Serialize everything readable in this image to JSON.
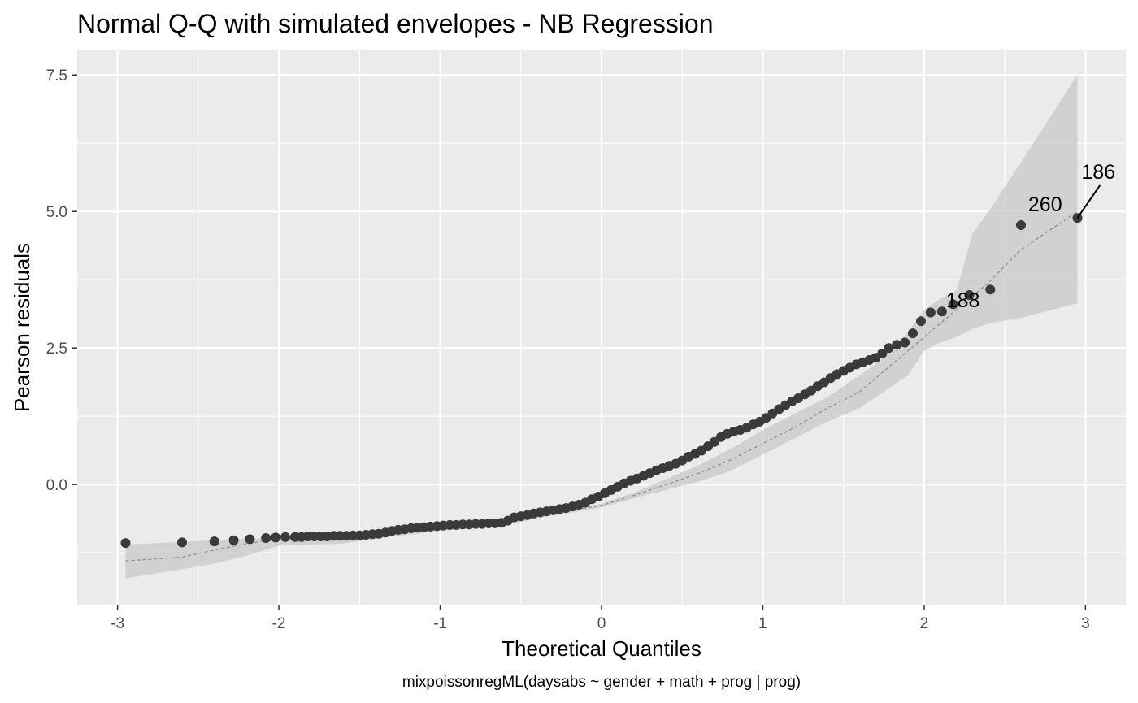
{
  "chart_data": {
    "type": "scatter",
    "title": "Normal Q-Q with simulated envelopes - NB Regression",
    "xlabel": "Theoretical Quantiles",
    "ylabel": "Pearson residuals",
    "caption": "mixpoissonregML(daysabs ~ gender + math + prog | prog)",
    "xlim": [
      -3.25,
      3.25
    ],
    "ylim": [
      -2.2,
      7.95
    ],
    "xticks": [
      -3,
      -2,
      -1,
      0,
      1,
      2,
      3
    ],
    "xtick_labels": [
      "-3",
      "-2",
      "-1",
      "0",
      "1",
      "2",
      "3"
    ],
    "yticks": [
      0.0,
      2.5,
      5.0,
      7.5
    ],
    "ytick_labels": [
      "0.0",
      "2.5",
      "5.0",
      "7.5"
    ],
    "grid": true,
    "colors": {
      "panel": "#ebebeb",
      "grid": "#ffffff",
      "points": "#3a3a3a",
      "envelope": "#c8c8c8",
      "median_line": "#8c8c8c"
    },
    "envelope": {
      "x": [
        -2.95,
        -2.6,
        -2.4,
        -2.2,
        -2.0,
        -1.6,
        -1.3,
        -1.0,
        -0.6,
        -0.4,
        -0.2,
        0.0,
        0.2,
        0.4,
        0.6,
        0.8,
        1.0,
        1.2,
        1.4,
        1.6,
        1.7,
        1.8,
        1.9,
        2.0,
        2.1,
        2.2,
        2.3,
        2.4,
        2.6,
        2.95
      ],
      "lower": [
        -1.72,
        -1.55,
        -1.45,
        -1.3,
        -1.12,
        -1.08,
        -0.95,
        -0.85,
        -0.75,
        -0.62,
        -0.52,
        -0.42,
        -0.25,
        -0.1,
        0.05,
        0.25,
        0.55,
        0.85,
        1.15,
        1.4,
        1.6,
        1.8,
        2.0,
        2.45,
        2.6,
        2.7,
        2.85,
        2.95,
        3.05,
        3.32
      ],
      "upper": [
        -1.1,
        -1.05,
        -1.02,
        -0.99,
        -0.97,
        -0.92,
        -0.85,
        -0.75,
        -0.65,
        -0.55,
        -0.45,
        -0.35,
        -0.15,
        0.1,
        0.35,
        0.65,
        1.0,
        1.3,
        1.6,
        2.0,
        2.2,
        2.45,
        2.8,
        3.2,
        3.4,
        3.55,
        4.6,
        5.0,
        5.9,
        7.5
      ]
    },
    "median_line": {
      "x": [
        -2.95,
        -2.6,
        -2.4,
        -2.2,
        -2.0,
        -1.6,
        -1.3,
        -1.0,
        -0.6,
        -0.4,
        -0.2,
        0.0,
        0.2,
        0.4,
        0.6,
        0.8,
        1.0,
        1.2,
        1.4,
        1.6,
        1.8,
        2.0,
        2.2,
        2.4,
        2.6,
        2.95
      ],
      "y": [
        -1.4,
        -1.33,
        -1.2,
        -1.08,
        -1.0,
        -0.95,
        -0.88,
        -0.78,
        -0.68,
        -0.58,
        -0.48,
        -0.38,
        -0.2,
        0.0,
        0.2,
        0.45,
        0.75,
        1.05,
        1.4,
        1.7,
        2.2,
        2.7,
        3.2,
        3.7,
        4.3,
        5.0
      ]
    },
    "points": {
      "x": [
        -2.95,
        -2.6,
        -2.4,
        -2.28,
        -2.18,
        -2.08,
        -2.02,
        -1.96,
        -1.9,
        -1.86,
        -1.82,
        -1.78,
        -1.74,
        -1.7,
        -1.66,
        -1.62,
        -1.58,
        -1.54,
        -1.5,
        -1.46,
        -1.42,
        -1.38,
        -1.34,
        -1.3,
        -1.26,
        -1.22,
        -1.18,
        -1.14,
        -1.1,
        -1.06,
        -1.02,
        -0.98,
        -0.94,
        -0.9,
        -0.86,
        -0.82,
        -0.78,
        -0.74,
        -0.7,
        -0.66,
        -0.62,
        -0.58,
        -0.54,
        -0.5,
        -0.46,
        -0.42,
        -0.38,
        -0.34,
        -0.3,
        -0.26,
        -0.22,
        -0.18,
        -0.14,
        -0.1,
        -0.06,
        -0.02,
        0.02,
        0.06,
        0.1,
        0.14,
        0.18,
        0.22,
        0.26,
        0.3,
        0.34,
        0.38,
        0.42,
        0.46,
        0.5,
        0.54,
        0.58,
        0.62,
        0.66,
        0.7,
        0.74,
        0.78,
        0.82,
        0.86,
        0.9,
        0.94,
        0.98,
        1.02,
        1.06,
        1.1,
        1.14,
        1.18,
        1.22,
        1.26,
        1.3,
        1.34,
        1.38,
        1.42,
        1.46,
        1.5,
        1.54,
        1.58,
        1.62,
        1.66,
        1.7,
        1.74,
        1.78,
        1.83,
        1.88,
        1.93,
        1.98,
        2.04,
        2.11,
        2.18,
        2.28,
        2.41,
        2.6,
        2.95
      ],
      "y": [
        -1.07,
        -1.06,
        -1.04,
        -1.02,
        -1.0,
        -0.98,
        -0.97,
        -0.96,
        -0.96,
        -0.96,
        -0.95,
        -0.95,
        -0.95,
        -0.95,
        -0.94,
        -0.94,
        -0.94,
        -0.93,
        -0.93,
        -0.92,
        -0.91,
        -0.9,
        -0.88,
        -0.85,
        -0.83,
        -0.82,
        -0.8,
        -0.79,
        -0.78,
        -0.77,
        -0.76,
        -0.75,
        -0.74,
        -0.74,
        -0.73,
        -0.73,
        -0.72,
        -0.72,
        -0.71,
        -0.71,
        -0.7,
        -0.66,
        -0.6,
        -0.58,
        -0.56,
        -0.53,
        -0.51,
        -0.49,
        -0.47,
        -0.45,
        -0.43,
        -0.4,
        -0.37,
        -0.33,
        -0.27,
        -0.22,
        -0.16,
        -0.1,
        -0.04,
        0.02,
        0.07,
        0.11,
        0.16,
        0.21,
        0.26,
        0.3,
        0.34,
        0.38,
        0.44,
        0.51,
        0.56,
        0.62,
        0.7,
        0.78,
        0.87,
        0.93,
        0.97,
        1.0,
        1.04,
        1.1,
        1.15,
        1.22,
        1.3,
        1.38,
        1.45,
        1.52,
        1.58,
        1.65,
        1.72,
        1.8,
        1.87,
        1.95,
        2.02,
        2.08,
        2.14,
        2.2,
        2.24,
        2.28,
        2.32,
        2.4,
        2.5,
        2.56,
        2.6,
        2.77,
        2.99,
        3.15,
        3.17,
        3.3,
        3.47,
        3.57,
        4.75,
        4.88
      ]
    },
    "annotations": [
      {
        "label": "186",
        "x": 2.95,
        "y": 4.88,
        "text_x": 3.08,
        "text_y": 5.6,
        "leader": true
      },
      {
        "label": "260",
        "x": 2.6,
        "y": 4.75,
        "text_x": 2.75,
        "text_y": 5.0,
        "leader": false
      },
      {
        "label": "188",
        "x": 2.11,
        "y": 3.17,
        "text_x": 2.24,
        "text_y": 3.25,
        "leader": false
      }
    ]
  }
}
